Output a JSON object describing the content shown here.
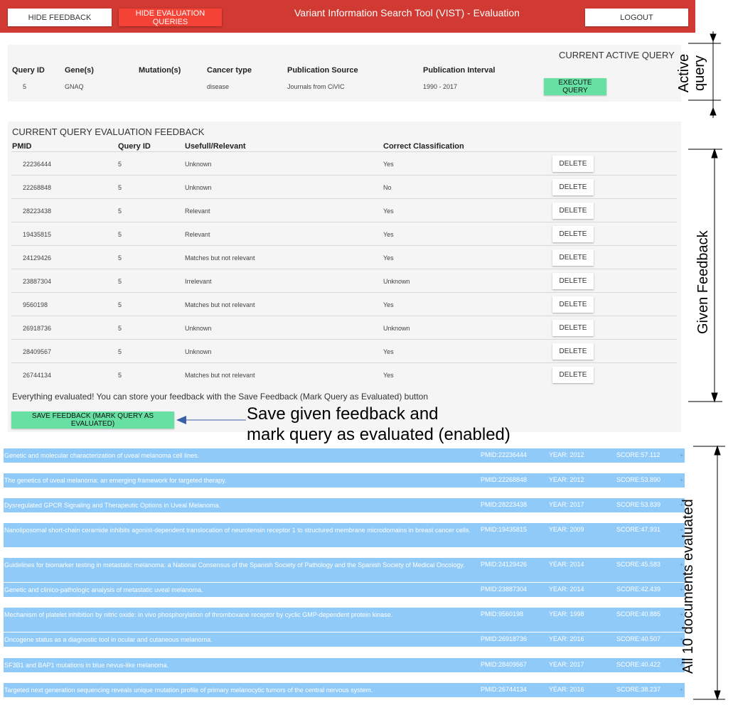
{
  "header": {
    "hide_feedback": "HIDE FEEDBACK",
    "hide_eval_queries": "HIDE EVALUATION QUERIES",
    "title": "Variant Information Search Tool (VIST) - Evaluation",
    "logout": "LOGOUT",
    "bar_color": "#d03a32"
  },
  "active_query": {
    "heading": "CURRENT ACTIVE QUERY",
    "columns": [
      "Query ID",
      "Gene(s)",
      "Mutation(s)",
      "Cancer type",
      "Publication Source",
      "Publication Interval"
    ],
    "values": [
      "5",
      "GNAQ",
      "",
      "disease",
      "Journals from CiVIC",
      "1990 - 2017"
    ],
    "execute": "EXECUTE QUERY"
  },
  "feedback": {
    "heading": "CURRENT QUERY EVALUATION FEEDBACK",
    "columns": [
      "PMID",
      "Query ID",
      "Usefull/Relevant",
      "Correct Classification"
    ],
    "delete_label": "DELETE",
    "rows": [
      {
        "pmid": "22236444",
        "qid": "5",
        "relevant": "Unknown",
        "classification": "Yes"
      },
      {
        "pmid": "22268848",
        "qid": "5",
        "relevant": "Unknown",
        "classification": "No"
      },
      {
        "pmid": "28223438",
        "qid": "5",
        "relevant": "Relevant",
        "classification": "Yes"
      },
      {
        "pmid": "19435815",
        "qid": "5",
        "relevant": "Relevant",
        "classification": "Yes"
      },
      {
        "pmid": "24129426",
        "qid": "5",
        "relevant": "Matches but not relevant",
        "classification": "Yes"
      },
      {
        "pmid": "23887304",
        "qid": "5",
        "relevant": "Irrelevant",
        "classification": "Unknown"
      },
      {
        "pmid": "9560198",
        "qid": "5",
        "relevant": "Matches but not relevant",
        "classification": "Yes"
      },
      {
        "pmid": "26918736",
        "qid": "5",
        "relevant": "Unknown",
        "classification": "Unknown"
      },
      {
        "pmid": "28409567",
        "qid": "5",
        "relevant": "Unknown",
        "classification": "Yes"
      },
      {
        "pmid": "26744134",
        "qid": "5",
        "relevant": "Matches but not relevant",
        "classification": "Yes"
      }
    ],
    "status_text": "Everything evaluated! You can store your feedback with the Save Feedback (Mark Query as Evaluated) button",
    "save_button": "SAVE FEEDBACK (MARK QUERY AS EVALUATED)"
  },
  "documents": [
    {
      "title": "Genetic and molecular characterization of uveal melanoma cell lines.",
      "pmid": "PMID:22236444",
      "year": "YEAR: 2012",
      "score": "SCORE:57.112"
    },
    {
      "title": "The genetics of uveal melanoma: an emerging framework for targeted therapy.",
      "pmid": "PMID:22268848",
      "year": "YEAR: 2012",
      "score": "SCORE:53.890"
    },
    {
      "title": "Dysregulated GPCR Signaling and Therapeutic Options in Uveal Melanoma.",
      "pmid": "PMID:28223438",
      "year": "YEAR: 2017",
      "score": "SCORE:53.839"
    },
    {
      "title": "Nanoliposomal short-chain ceramide inhibits agonist-dependent translocation of neurotensin receptor 1 to structured membrane microdomains in breast cancer cells.",
      "pmid": "PMID:19435815",
      "year": "YEAR: 2009",
      "score": "SCORE:47.931"
    },
    {
      "title": "Guidelines for biomarker testing in metastatic melanoma: a National Consensus of the Spanish Society of Pathology and the Spanish Society of Medical Oncology.",
      "pmid": "PMID:24129426",
      "year": "YEAR: 2014",
      "score": "SCORE:45.583"
    },
    {
      "title": "Genetic and clinico-pathologic analysis of metastatic uveal melanoma.",
      "pmid": "PMID:23887304",
      "year": "YEAR: 2014",
      "score": "SCORE:42.439"
    },
    {
      "title": "Mechanism of platelet inhibition by nitric oxide: in vivo phosphorylation of thromboxane receptor by cyclic GMP-dependent protein kinase.",
      "pmid": "PMID:9560198",
      "year": "YEAR: 1998",
      "score": "SCORE:40.885"
    },
    {
      "title": "Oncogene status as a diagnostic tool in ocular and cutaneous melanoma.",
      "pmid": "PMID:26918736",
      "year": "YEAR: 2016",
      "score": "SCORE:40.507"
    },
    {
      "title": "SF3B1 and BAP1 mutations in blue nevus-like melanoma.",
      "pmid": "PMID:28409567",
      "year": "YEAR: 2017",
      "score": "SCORE:40.422"
    },
    {
      "title": "Targeted next generation sequencing reveals unique mutation profile of primary melanocytic tumors of the central nervous system.",
      "pmid": "PMID:26744134",
      "year": "YEAR: 2016",
      "score": "SCORE:38.237"
    }
  ],
  "annotations": {
    "active_query_line1": "Active",
    "active_query_line2": "query",
    "given_feedback": "Given Feedback",
    "save_note_line1": "Save given feedback and",
    "save_note_line2": "mark query as evaluated (enabled)",
    "all_documents": "All 10 documents evaluated"
  }
}
